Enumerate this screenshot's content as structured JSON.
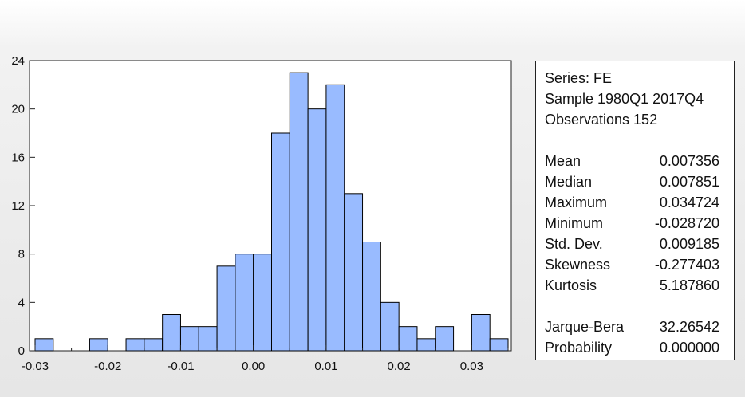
{
  "chart_data": {
    "type": "bar",
    "title": "",
    "xlabel": "",
    "ylabel": "",
    "bin_width": 0.0025,
    "bins_start": [
      -0.03,
      -0.0275,
      -0.025,
      -0.0225,
      -0.02,
      -0.0175,
      -0.015,
      -0.0125,
      -0.01,
      -0.0075,
      -0.005,
      -0.0025,
      0.0,
      0.0025,
      0.005,
      0.0075,
      0.01,
      0.0125,
      0.015,
      0.0175,
      0.02,
      0.0225,
      0.025,
      0.0275,
      0.03,
      0.0325
    ],
    "values": [
      1,
      0,
      0,
      1,
      0,
      1,
      1,
      3,
      2,
      2,
      7,
      8,
      8,
      18,
      23,
      20,
      22,
      13,
      9,
      4,
      2,
      1,
      2,
      0,
      3,
      1
    ],
    "xlim": [
      -0.03,
      0.035
    ],
    "ylim": [
      0,
      24
    ],
    "xticks": [
      -0.03,
      -0.02,
      -0.01,
      0.0,
      0.01,
      0.02,
      0.03
    ],
    "xtick_labels": [
      "-0.03",
      "-0.02",
      "-0.01",
      "0.00",
      "0.01",
      "0.02",
      "0.03"
    ],
    "yticks": [
      0,
      4,
      8,
      12,
      16,
      20,
      24
    ],
    "ytick_labels": [
      "0",
      "4",
      "8",
      "12",
      "16",
      "20",
      "24"
    ],
    "bar_color": "#99bbff",
    "bar_edge": "#000000",
    "grid": false
  },
  "stats": {
    "series": "Series: FE",
    "sample": "Sample 1980Q1 2017Q4",
    "observations": "Observations 152",
    "rows": [
      {
        "label": "Mean",
        "value": "0.007356"
      },
      {
        "label": "Median",
        "value": "0.007851"
      },
      {
        "label": "Maximum",
        "value": "0.034724"
      },
      {
        "label": "Minimum",
        "value": "-0.028720"
      },
      {
        "label": "Std. Dev.",
        "value": "0.009185"
      },
      {
        "label": "Skewness",
        "value": "-0.277403"
      },
      {
        "label": "Kurtosis",
        "value": "5.187860"
      }
    ],
    "tests": [
      {
        "label": "Jarque-Bera",
        "value": "32.26542"
      },
      {
        "label": "Probability",
        "value": "0.000000"
      }
    ]
  }
}
